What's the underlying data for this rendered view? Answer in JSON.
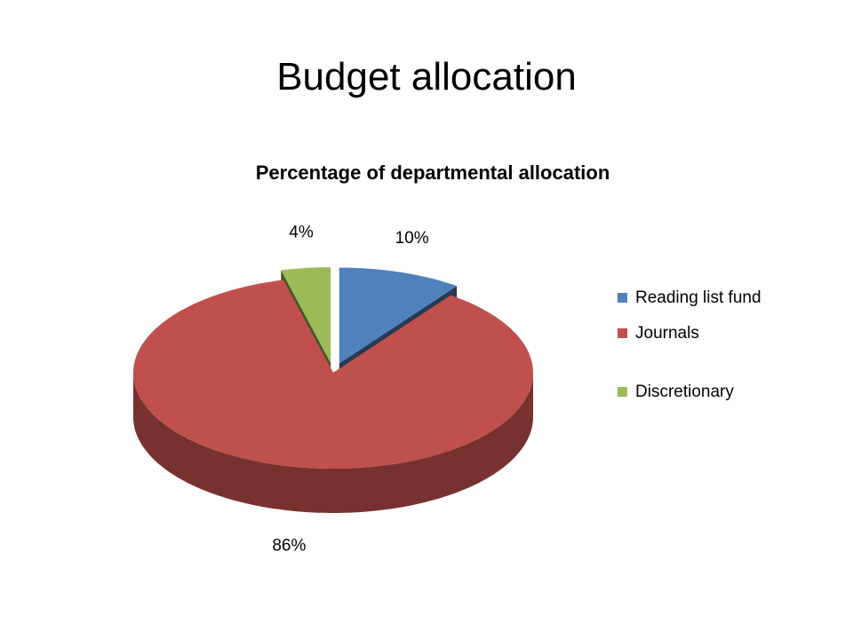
{
  "slide_title": "Budget allocation",
  "chart_data": {
    "type": "pie",
    "title": "Percentage of departmental allocation",
    "categories": [
      "Reading list fund",
      "Journals",
      "Discretionary"
    ],
    "values": [
      10,
      86,
      4
    ],
    "value_labels": [
      "10%",
      "86%",
      "4%"
    ],
    "colors": [
      "#4f81bd",
      "#c0504d",
      "#9bbb59"
    ],
    "legend": "right"
  }
}
